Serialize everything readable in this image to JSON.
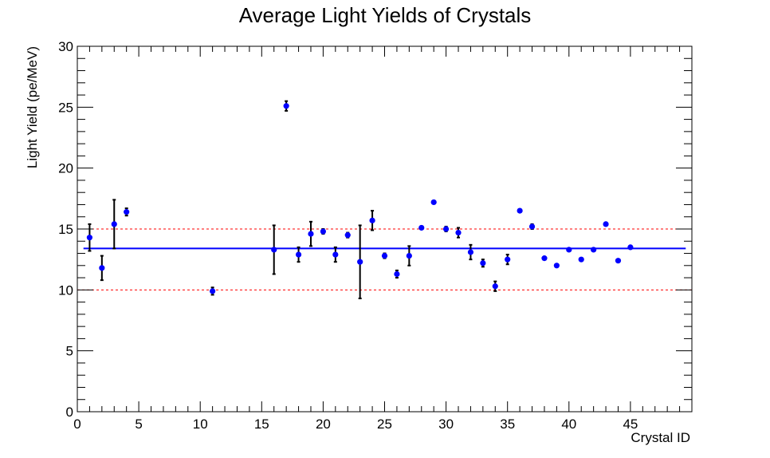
{
  "chart_data": {
    "type": "scatter",
    "title": "Average Light Yields of Crystals",
    "xlabel": "Crystal ID",
    "ylabel": "Light Yield (pe/MeV)",
    "xlim": [
      0,
      50
    ],
    "ylim": [
      0,
      30
    ],
    "x_ticks": [
      0,
      5,
      10,
      15,
      20,
      25,
      30,
      35,
      40,
      45
    ],
    "y_ticks": [
      0,
      5,
      10,
      15,
      20,
      25,
      30
    ],
    "grid": false,
    "colors": {
      "points": "#0000ff",
      "error_bars": "#000000",
      "mean_line": "#0000ff",
      "band_lines": "#ff0000"
    },
    "mean_line": {
      "y": 13.4,
      "x_range": [
        0.5,
        49.5
      ]
    },
    "band_lines": [
      10,
      15
    ],
    "series": [
      {
        "points": [
          {
            "x": 1,
            "y": 14.3,
            "err": 1.1
          },
          {
            "x": 2,
            "y": 11.8,
            "err": 1.0
          },
          {
            "x": 3,
            "y": 15.4,
            "err": 2.0
          },
          {
            "x": 4,
            "y": 16.4,
            "err": 0.3
          },
          {
            "x": 11,
            "y": 9.9,
            "err": 0.3
          },
          {
            "x": 16,
            "y": 13.3,
            "err": 2.0
          },
          {
            "x": 17,
            "y": 25.1,
            "err": 0.4
          },
          {
            "x": 18,
            "y": 12.9,
            "err": 0.6
          },
          {
            "x": 19,
            "y": 14.6,
            "err": 1.0
          },
          {
            "x": 20,
            "y": 14.8,
            "err": 0.2
          },
          {
            "x": 21,
            "y": 12.9,
            "err": 0.6
          },
          {
            "x": 22,
            "y": 14.5,
            "err": 0.2
          },
          {
            "x": 23,
            "y": 12.3,
            "err": 3.0
          },
          {
            "x": 24,
            "y": 15.7,
            "err": 0.8
          },
          {
            "x": 25,
            "y": 12.8,
            "err": 0.2
          },
          {
            "x": 26,
            "y": 11.3,
            "err": 0.3
          },
          {
            "x": 27,
            "y": 12.8,
            "err": 0.8
          },
          {
            "x": 28,
            "y": 15.1,
            "err": 0.1
          },
          {
            "x": 29,
            "y": 17.2,
            "err": 0.1
          },
          {
            "x": 30,
            "y": 15.0,
            "err": 0.2
          },
          {
            "x": 31,
            "y": 14.7,
            "err": 0.4
          },
          {
            "x": 32,
            "y": 13.1,
            "err": 0.6
          },
          {
            "x": 33,
            "y": 12.2,
            "err": 0.3
          },
          {
            "x": 34,
            "y": 10.3,
            "err": 0.4
          },
          {
            "x": 35,
            "y": 12.5,
            "err": 0.4
          },
          {
            "x": 36,
            "y": 16.5,
            "err": 0.1
          },
          {
            "x": 37,
            "y": 15.2,
            "err": 0.2
          },
          {
            "x": 38,
            "y": 12.6,
            "err": 0.1
          },
          {
            "x": 39,
            "y": 12.0,
            "err": 0.1
          },
          {
            "x": 40,
            "y": 13.3,
            "err": 0.1
          },
          {
            "x": 41,
            "y": 12.5,
            "err": 0.1
          },
          {
            "x": 42,
            "y": 13.3,
            "err": 0.1
          },
          {
            "x": 43,
            "y": 15.4,
            "err": 0.1
          },
          {
            "x": 44,
            "y": 12.4,
            "err": 0.1
          },
          {
            "x": 45,
            "y": 13.5,
            "err": 0.1
          }
        ]
      }
    ]
  }
}
